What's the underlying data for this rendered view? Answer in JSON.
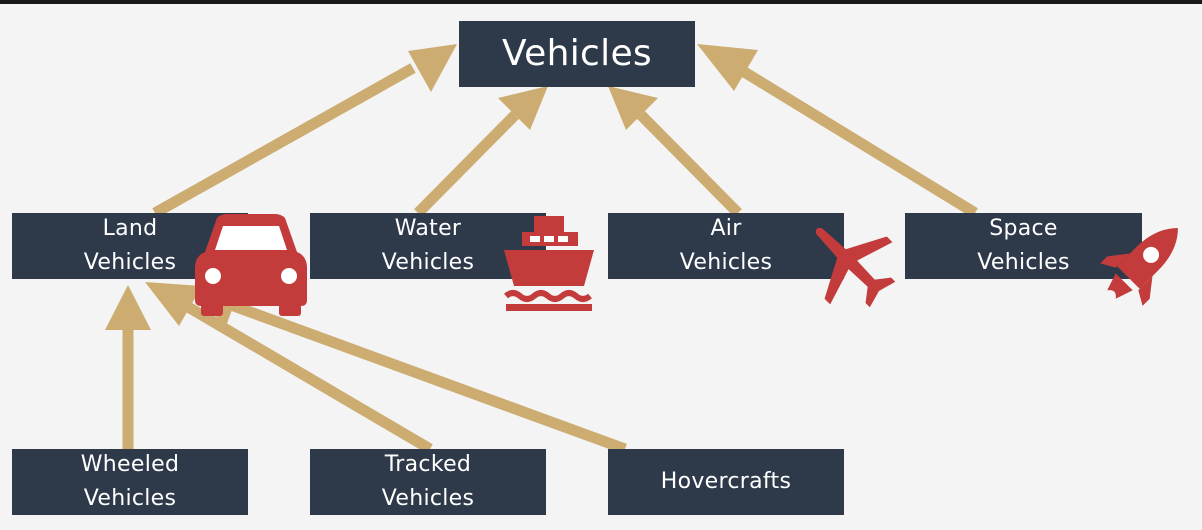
{
  "diagram": {
    "root": {
      "label": "Vehicles"
    },
    "categories": [
      {
        "label": "Land\nVehicles",
        "icon": "car-icon"
      },
      {
        "label": "Water\nVehicles",
        "icon": "ship-icon"
      },
      {
        "label": "Air\nVehicles",
        "icon": "airplane-icon"
      },
      {
        "label": "Space\nVehicles",
        "icon": "rocket-icon"
      }
    ],
    "land_subtypes": [
      {
        "label": "Wheeled\nVehicles"
      },
      {
        "label": "Tracked\nVehicles"
      },
      {
        "label": "Hovercrafts"
      }
    ]
  },
  "colors": {
    "box": "#2e3a4a",
    "text": "#ffffff",
    "arrow": "#cdac72",
    "icon": "#c43b3b",
    "background": "#f4f4f4"
  }
}
